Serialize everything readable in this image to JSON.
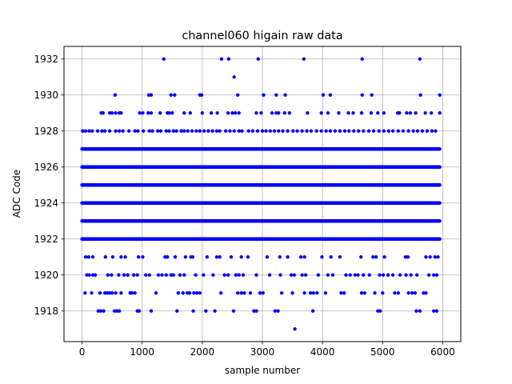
{
  "chart_data": {
    "type": "scatter",
    "title": "channel060 higain raw data",
    "xlabel": "sample number",
    "ylabel": "ADC Code",
    "xlim": [
      -300,
      6300
    ],
    "ylim": [
      1916.3,
      1932.7
    ],
    "x_ticks": [
      0,
      1000,
      2000,
      3000,
      4000,
      5000,
      6000
    ],
    "y_ticks": [
      1918,
      1920,
      1922,
      1924,
      1926,
      1928,
      1930,
      1932
    ],
    "x_tick_labels": [
      "0",
      "1000",
      "2000",
      "3000",
      "4000",
      "5000",
      "6000"
    ],
    "y_tick_labels": [
      "1918",
      "1920",
      "1922",
      "1924",
      "1926",
      "1928",
      "1930",
      "1932"
    ],
    "grid": true,
    "marker_color": "#0000ff",
    "x_range": [
      0,
      5950
    ],
    "levels": [
      {
        "value": 1917,
        "points": [
          3540
        ]
      },
      {
        "value": 1918,
        "points": [
          270,
          310,
          360,
          540,
          580,
          620,
          920,
          950,
          1150,
          1580,
          1850,
          2060,
          2210,
          2520,
          2860,
          2900,
          3210,
          3260,
          3840,
          4920,
          4960,
          5560,
          5620,
          5850,
          5900
        ]
      },
      {
        "value": 1919,
        "points": [
          50,
          160,
          300,
          380,
          420,
          460,
          500,
          560,
          650,
          800,
          830,
          880,
          1230,
          1600,
          1680,
          1750,
          1790,
          1860,
          1910,
          1960,
          2310,
          2590,
          2650,
          2700,
          2800,
          2960,
          3010,
          3320,
          3500,
          3700,
          3800,
          3850,
          3910,
          4050,
          4310,
          4360,
          4650,
          4700,
          4870,
          5000,
          5200,
          5260,
          5430,
          5490,
          5540,
          5680,
          5720
        ]
      },
      {
        "value": 1920,
        "points": [
          80,
          120,
          180,
          220,
          430,
          490,
          610,
          700,
          760,
          860,
          920,
          1060,
          1120,
          1270,
          1330,
          1400,
          1480,
          1520,
          1630,
          1700,
          1890,
          2020,
          2180,
          2370,
          2430,
          2560,
          2610,
          2680,
          2900,
          3120,
          3300,
          3480,
          3530,
          3660,
          3720,
          3930,
          4090,
          4170,
          4390,
          4460,
          4540,
          4590,
          4680,
          4780,
          4950,
          5010,
          5090,
          5170,
          5290,
          5390,
          5470,
          5570,
          5770,
          5850,
          5900
        ]
      },
      {
        "value": 1921,
        "points": [
          60,
          110,
          180,
          390,
          510,
          650,
          720,
          940,
          1010,
          1380,
          1420,
          1550,
          1720,
          1810,
          1840,
          2080,
          2240,
          2290,
          2480,
          2650,
          2760,
          3080,
          3290,
          3420,
          3640,
          3700,
          3990,
          4140,
          4290,
          4640,
          4840,
          4890,
          5030,
          5380,
          5420,
          5720,
          5790,
          5870,
          5920
        ]
      },
      {
        "value": 1922,
        "dense": true
      },
      {
        "value": 1923,
        "dense": true
      },
      {
        "value": 1924,
        "dense": true
      },
      {
        "value": 1925,
        "dense": true
      },
      {
        "value": 1926,
        "dense": true
      },
      {
        "value": 1927,
        "dense": true
      },
      {
        "value": 1928,
        "points": [
          10,
          60,
          120,
          170,
          260,
          330,
          380,
          460,
          560,
          620,
          680,
          780,
          880,
          930,
          1020,
          1120,
          1170,
          1260,
          1310,
          1400,
          1450,
          1520,
          1570,
          1650,
          1700,
          1760,
          1830,
          1900,
          1960,
          2030,
          2100,
          2170,
          2240,
          2290,
          2390,
          2460,
          2530,
          2610,
          2660,
          2770,
          2840,
          2920,
          3000,
          3060,
          3130,
          3200,
          3270,
          3340,
          3420,
          3510,
          3580,
          3660,
          3740,
          3810,
          3900,
          3980,
          4060,
          4130,
          4210,
          4290,
          4370,
          4440,
          4520,
          4600,
          4680,
          4770,
          4850,
          4940,
          5020,
          5100,
          5170,
          5260,
          5340,
          5430,
          5510,
          5580,
          5660,
          5740,
          5820,
          5880
        ]
      },
      {
        "value": 1929,
        "points": [
          320,
          350,
          460,
          500,
          560,
          620,
          650,
          960,
          1010,
          1100,
          1150,
          1300,
          1420,
          1450,
          1500,
          1700,
          1800,
          2000,
          2150,
          2250,
          2430,
          2500,
          2550,
          2610,
          2900,
          2980,
          3160,
          3230,
          3270,
          3370,
          3450,
          3750,
          3980,
          4090,
          4270,
          4430,
          4510,
          4650,
          4810,
          4920,
          5020,
          5250,
          5280,
          5400,
          5460,
          5550,
          5710,
          5810,
          5950
        ]
      },
      {
        "value": 1930,
        "points": [
          550,
          1110,
          1150,
          1480,
          1540,
          1960,
          1990,
          2590,
          3020,
          3230,
          3380,
          4010,
          4130,
          4660,
          4820,
          5630,
          5950
        ]
      },
      {
        "value": 1931,
        "points": [
          2530
        ]
      },
      {
        "value": 1932,
        "points": [
          1360,
          2320,
          2440,
          2930,
          3690,
          4660,
          5620
        ]
      }
    ]
  }
}
